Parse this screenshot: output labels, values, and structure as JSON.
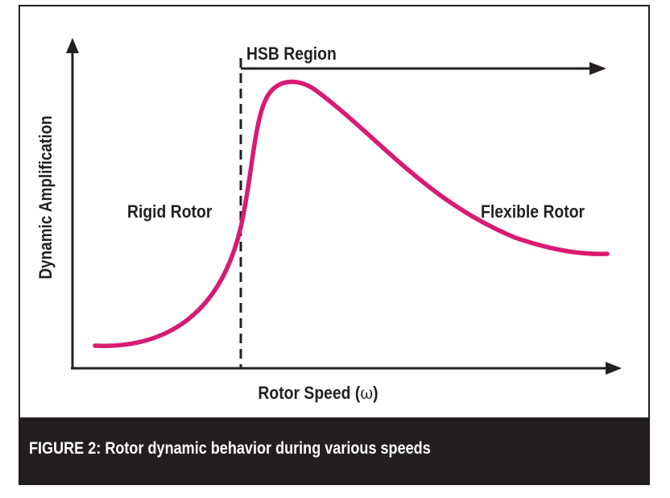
{
  "figure": {
    "caption": "FIGURE 2: Rotor dynamic behavior during various speeds",
    "caption_bg_color": "#231f20",
    "caption_text_color": "#ffffff"
  },
  "diagram": {
    "y_axis_label": "Dynamic Amplification",
    "x_axis_label_text": "Rotor Speed (",
    "x_axis_label_symbol": "ω",
    "x_axis_label_close": ")",
    "region_label": "HSB Region",
    "left_region_label": "Rigid Rotor",
    "right_region_label": "Flexible Rotor",
    "curve_color": "#d81b72",
    "axis_color": "#231f20"
  }
}
